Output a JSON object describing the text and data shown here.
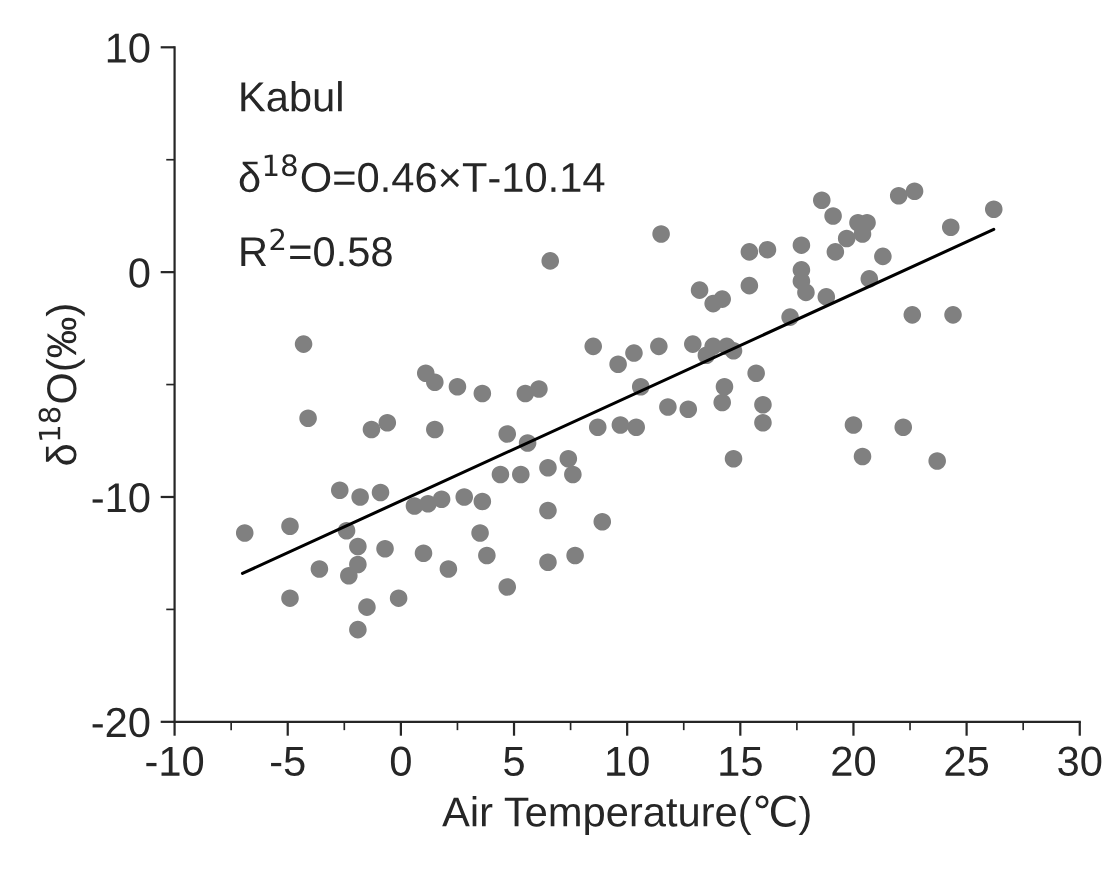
{
  "chart_data": {
    "type": "scatter",
    "xlabel": "Air Temperature(℃)",
    "ylabel": "δ$^{18}$O(‰)",
    "annotations": [
      "Kabul",
      "δ$^{18}$O=0.46×T-10.14",
      "R$^{2}$=0.58"
    ],
    "xlim": [
      -10,
      30
    ],
    "xticks": [
      -10,
      -5,
      0,
      5,
      10,
      15,
      20,
      25,
      30
    ],
    "ylim": [
      -20,
      10
    ],
    "yticks": [
      -20,
      -10,
      0,
      10
    ],
    "grid": false,
    "legend": false,
    "series": [
      {
        "color": "#808080",
        "marker": "circle",
        "x": [
          6.6,
          -4.3,
          8.5,
          9.6,
          10.3,
          1.1,
          1.5,
          2.5,
          3.6,
          5.5,
          6.1,
          -4.1,
          -1.3,
          -0.6,
          1.5,
          4.7,
          5.6,
          8.7,
          9.7,
          10.4,
          7.4,
          6.5,
          5.3,
          4.4,
          7.6,
          -2.7,
          -1.8,
          -0.9,
          0.6,
          1.2,
          1.8,
          2.8,
          3.6,
          8.9,
          -6.9,
          -4.9,
          -2.4,
          3.5,
          -1.9,
          -0.7,
          1.0,
          3.8,
          6.5,
          -3.6,
          -2.3,
          -1.9,
          2.1,
          6.5,
          7.7,
          -4.9,
          -0.1,
          4.7,
          -1.5,
          -1.9,
          11.5,
          18.6,
          22.0,
          22.7,
          26.2,
          19.1,
          20.2,
          20.6,
          20.4,
          19.7,
          24.3,
          15.4,
          16.2,
          17.7,
          19.2,
          21.3,
          17.7,
          17.7,
          17.9,
          20.7,
          15.4,
          13.2,
          13.8,
          14.2,
          18.8,
          17.2,
          22.6,
          24.4,
          11.4,
          12.9,
          13.8,
          14.4,
          14.7,
          13.5,
          15.7,
          10.6,
          14.3,
          14.2,
          11.8,
          12.7,
          16.0,
          16.0,
          20.0,
          22.2,
          14.7,
          20.4,
          23.7
        ],
        "values": [
          0.5,
          -3.2,
          -3.3,
          -4.1,
          -3.6,
          -4.5,
          -4.9,
          -5.1,
          -5.4,
          -5.4,
          -5.2,
          -6.5,
          -7.0,
          -6.7,
          -7.0,
          -7.2,
          -7.6,
          -6.9,
          -6.8,
          -6.9,
          -8.3,
          -8.7,
          -9.0,
          -9.0,
          -9.0,
          -9.7,
          -10.0,
          -9.8,
          -10.4,
          -10.3,
          -10.1,
          -10.0,
          -10.2,
          -11.1,
          -11.6,
          -11.3,
          -11.5,
          -11.6,
          -12.2,
          -12.3,
          -12.5,
          -12.6,
          -10.6,
          -13.2,
          -13.5,
          -13.0,
          -13.2,
          -12.9,
          -12.6,
          -14.5,
          -14.5,
          -14.0,
          -14.9,
          -15.9,
          1.7,
          3.2,
          3.4,
          3.6,
          2.8,
          2.5,
          2.2,
          2.2,
          1.7,
          1.5,
          2.0,
          0.9,
          1.0,
          1.2,
          0.9,
          0.7,
          0.1,
          -0.4,
          -0.9,
          -0.3,
          -0.6,
          -0.8,
          -1.4,
          -1.2,
          -1.1,
          -2.0,
          -1.9,
          -1.9,
          -3.3,
          -3.2,
          -3.3,
          -3.3,
          -3.5,
          -3.7,
          -4.5,
          -5.1,
          -5.1,
          -5.8,
          -6.0,
          -6.1,
          -5.9,
          -6.7,
          -6.8,
          -6.9,
          -8.3,
          -8.2,
          -8.4
        ]
      },
      {
        "type": "line",
        "color": "#000000",
        "x": [
          -7,
          26.2
        ],
        "marker": "none",
        "values": [
          -13.4,
          1.9
        ]
      }
    ]
  }
}
